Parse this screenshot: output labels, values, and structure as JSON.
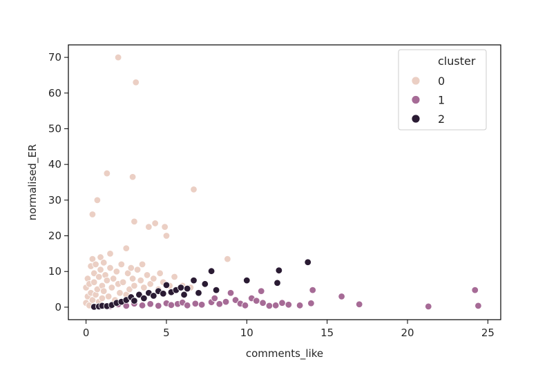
{
  "chart_data": {
    "type": "scatter",
    "title": "",
    "xlabel": "comments_like",
    "ylabel": "normalised_ER",
    "xlim": [
      -1.1,
      25.8
    ],
    "ylim": [
      -3.5,
      73.5
    ],
    "xticks": [
      0,
      5,
      10,
      15,
      20,
      25
    ],
    "yticks": [
      0,
      10,
      20,
      30,
      40,
      50,
      60,
      70
    ],
    "grid": false,
    "legend": {
      "title": "cluster",
      "placement": "top-right"
    },
    "series": [
      {
        "name": "0",
        "color": "#ebcfc4",
        "points": [
          [
            0.0,
            1.2
          ],
          [
            0.0,
            5.5
          ],
          [
            0.1,
            3.0
          ],
          [
            0.1,
            8.0
          ],
          [
            0.2,
            0.5
          ],
          [
            0.2,
            6.5
          ],
          [
            0.3,
            11.5
          ],
          [
            0.3,
            4.0
          ],
          [
            0.4,
            26.0
          ],
          [
            0.4,
            13.5
          ],
          [
            0.4,
            2.0
          ],
          [
            0.5,
            9.5
          ],
          [
            0.5,
            7.0
          ],
          [
            0.6,
            12.0
          ],
          [
            0.6,
            3.5
          ],
          [
            0.7,
            30.0
          ],
          [
            0.7,
            5.0
          ],
          [
            0.8,
            1.5
          ],
          [
            0.8,
            8.5
          ],
          [
            0.9,
            14.0
          ],
          [
            0.9,
            10.5
          ],
          [
            1.0,
            6.0
          ],
          [
            1.0,
            2.5
          ],
          [
            1.1,
            12.5
          ],
          [
            1.1,
            4.5
          ],
          [
            1.2,
            9.0
          ],
          [
            1.3,
            37.5
          ],
          [
            1.3,
            7.5
          ],
          [
            1.4,
            3.0
          ],
          [
            1.5,
            15.0
          ],
          [
            1.5,
            11.0
          ],
          [
            1.6,
            5.5
          ],
          [
            1.7,
            8.0
          ],
          [
            1.8,
            2.0
          ],
          [
            1.9,
            10.0
          ],
          [
            2.0,
            70.0
          ],
          [
            2.0,
            6.5
          ],
          [
            2.1,
            4.0
          ],
          [
            2.2,
            12.0
          ],
          [
            2.3,
            7.0
          ],
          [
            2.5,
            16.5
          ],
          [
            2.5,
            3.5
          ],
          [
            2.6,
            9.5
          ],
          [
            2.7,
            5.0
          ],
          [
            2.8,
            11.0
          ],
          [
            2.9,
            36.5
          ],
          [
            2.9,
            8.0
          ],
          [
            3.0,
            24.0
          ],
          [
            3.0,
            6.0
          ],
          [
            3.1,
            63.0
          ],
          [
            3.2,
            10.5
          ],
          [
            3.4,
            7.5
          ],
          [
            3.5,
            12.0
          ],
          [
            3.6,
            5.5
          ],
          [
            3.8,
            9.0
          ],
          [
            3.9,
            22.5
          ],
          [
            4.0,
            6.5
          ],
          [
            4.2,
            8.0
          ],
          [
            4.3,
            23.5
          ],
          [
            4.5,
            5.0
          ],
          [
            4.6,
            9.5
          ],
          [
            4.8,
            7.0
          ],
          [
            4.9,
            22.5
          ],
          [
            5.0,
            20.0
          ],
          [
            5.2,
            6.0
          ],
          [
            5.5,
            8.5
          ],
          [
            6.0,
            6.0
          ],
          [
            6.5,
            5.5
          ],
          [
            6.7,
            33.0
          ],
          [
            8.8,
            13.5
          ]
        ]
      },
      {
        "name": "1",
        "color": "#a66b96",
        "points": [
          [
            1.5,
            0.3
          ],
          [
            2.0,
            0.8
          ],
          [
            2.5,
            0.4
          ],
          [
            3.0,
            1.0
          ],
          [
            3.5,
            0.5
          ],
          [
            4.0,
            0.9
          ],
          [
            4.5,
            0.4
          ],
          [
            5.0,
            1.1
          ],
          [
            5.3,
            0.6
          ],
          [
            5.7,
            0.9
          ],
          [
            6.0,
            1.3
          ],
          [
            6.3,
            0.5
          ],
          [
            6.8,
            1.0
          ],
          [
            7.2,
            0.7
          ],
          [
            7.8,
            1.4
          ],
          [
            8.0,
            2.5
          ],
          [
            8.3,
            0.9
          ],
          [
            8.7,
            1.5
          ],
          [
            9.0,
            4.0
          ],
          [
            9.3,
            2.0
          ],
          [
            9.6,
            1.0
          ],
          [
            9.9,
            0.5
          ],
          [
            10.3,
            2.5
          ],
          [
            10.6,
            1.8
          ],
          [
            10.9,
            4.5
          ],
          [
            11.0,
            1.2
          ],
          [
            11.4,
            0.4
          ],
          [
            11.8,
            0.5
          ],
          [
            12.2,
            1.2
          ],
          [
            12.6,
            0.7
          ],
          [
            13.3,
            0.5
          ],
          [
            14.0,
            1.1
          ],
          [
            14.1,
            4.8
          ],
          [
            15.9,
            3.0
          ],
          [
            17.0,
            0.8
          ],
          [
            21.3,
            0.2
          ],
          [
            24.2,
            4.8
          ],
          [
            24.4,
            0.4
          ]
        ]
      },
      {
        "name": "2",
        "color": "#2a1b33",
        "points": [
          [
            0.5,
            0.1
          ],
          [
            0.8,
            0.2
          ],
          [
            1.0,
            0.4
          ],
          [
            1.3,
            0.3
          ],
          [
            1.6,
            0.6
          ],
          [
            1.9,
            1.2
          ],
          [
            2.2,
            1.5
          ],
          [
            2.5,
            2.0
          ],
          [
            2.8,
            2.8
          ],
          [
            3.0,
            1.8
          ],
          [
            3.3,
            3.5
          ],
          [
            3.6,
            2.5
          ],
          [
            3.9,
            4.0
          ],
          [
            4.2,
            3.2
          ],
          [
            4.5,
            4.5
          ],
          [
            4.8,
            3.8
          ],
          [
            5.0,
            6.2
          ],
          [
            5.3,
            4.2
          ],
          [
            5.6,
            4.8
          ],
          [
            5.9,
            5.5
          ],
          [
            6.1,
            3.5
          ],
          [
            6.3,
            5.2
          ],
          [
            6.7,
            7.5
          ],
          [
            7.0,
            4.0
          ],
          [
            7.4,
            6.5
          ],
          [
            7.8,
            10.1
          ],
          [
            8.1,
            4.8
          ],
          [
            10.0,
            7.5
          ],
          [
            11.9,
            6.8
          ],
          [
            12.0,
            10.3
          ],
          [
            13.8,
            12.6
          ]
        ]
      }
    ]
  }
}
